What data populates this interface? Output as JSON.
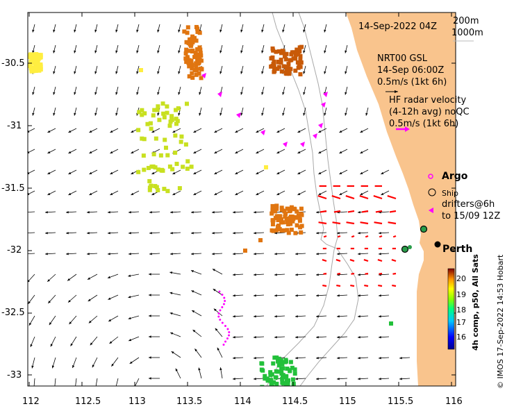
{
  "map": {
    "timestamp": "14-Sep-2022 04Z",
    "contour_labels": [
      "200m",
      "1000m"
    ],
    "model_label_line1": "NRT00 GSL",
    "model_label_line2": "14-Sep 06:00Z",
    "model_scale": "0.5m/s (1kt 6h)",
    "hf_label_line1": "HF radar velocity",
    "hf_label_line2": "(4-12h avg) noQC",
    "hf_scale": "0.5m/s (1kt 6h)",
    "legend": {
      "argo": "Argo",
      "ship": "Ship",
      "drifters_line1": "drifters@6h",
      "drifters_line2": "to 15/09 12Z"
    },
    "city": "Perth",
    "colorbar_title": "4h comp, p50, All Sats",
    "colorbar_ticks": [
      "20",
      "19",
      "18",
      "17",
      "16"
    ],
    "credit": "© IMOS 17-Sep-2022 14:53 Hobart",
    "x_ticks": [
      "112",
      "112.5",
      "113",
      "113.5",
      "114",
      "114.5",
      "115",
      "115.5",
      "116"
    ],
    "y_ticks": [
      "-30.5",
      "-31",
      "-31.5",
      "-32",
      "-32.5",
      "-33"
    ],
    "colors": {
      "land": "#f9c48d",
      "arrow": "#000000",
      "hf": "#ff0000",
      "drifter": "#ff00ff",
      "contour": "#a8a8a8"
    }
  },
  "chart_data": {
    "type": "map",
    "xlim": [
      112,
      116.1
    ],
    "ylim": [
      -33.1,
      -30.1
    ],
    "sst_colorbar": {
      "min": 15.5,
      "max": 20.5,
      "units": "°C"
    },
    "city": {
      "name": "Perth",
      "lon": 115.86,
      "lat": -31.95
    },
    "ship_markers": [
      {
        "lon": 115.72,
        "lat": -31.83
      },
      {
        "lon": 115.57,
        "lat": -31.99
      }
    ]
  }
}
